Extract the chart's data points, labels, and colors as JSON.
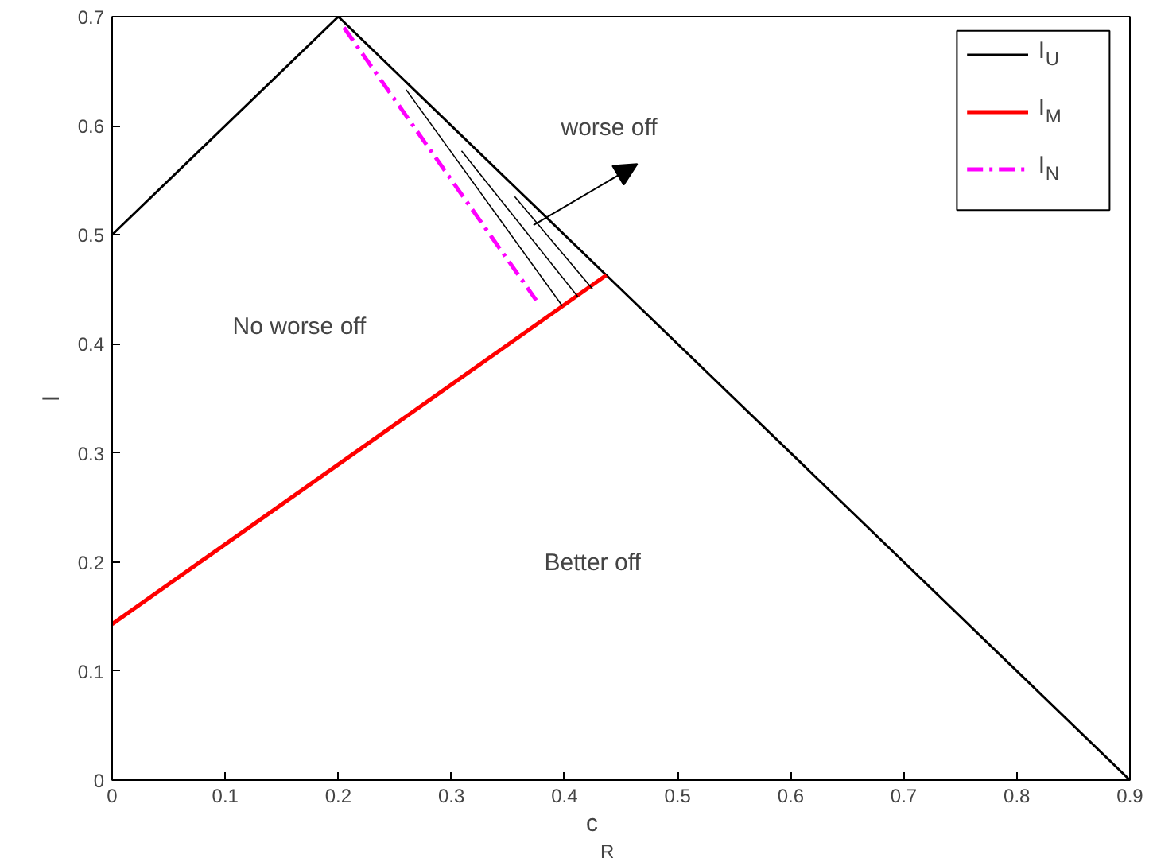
{
  "chart_data": {
    "type": "line",
    "xlabel": "c$_{R}$",
    "ylabel": "I",
    "xlim": [
      0,
      0.9
    ],
    "ylim": [
      0,
      0.7
    ],
    "xticks": [
      0,
      0.1,
      0.2,
      0.3,
      0.4,
      0.5,
      0.6,
      0.7,
      0.8,
      0.9
    ],
    "yticks": [
      0,
      0.1,
      0.2,
      0.3,
      0.4,
      0.5,
      0.6,
      0.7
    ],
    "grid": false,
    "legend": "top right",
    "series": [
      {
        "name": "I$_{U}$",
        "color": "#000000",
        "x": [
          0,
          0.2,
          0.9
        ],
        "values": [
          0.5,
          0.7,
          0
        ],
        "line_style": "solid"
      },
      {
        "name": "I$_{M}$",
        "color": "#ff0000",
        "x": [
          0,
          0.437
        ],
        "values": [
          0.143,
          0.463
        ],
        "line_style": "solid"
      },
      {
        "name": "I$_{N}$",
        "color": "#ff00ff",
        "x": [
          0.205,
          0.375
        ],
        "values": [
          0.69,
          0.44
        ],
        "line_style": "dashdot"
      },
      {
        "color": "#000000",
        "x": [
          0.26,
          0.398
        ],
        "values": [
          0.633,
          0.435
        ],
        "line_style": "solid"
      },
      {
        "color": "#000000",
        "x": [
          0.309,
          0.412
        ],
        "values": [
          0.577,
          0.443
        ],
        "line_style": "solid"
      },
      {
        "color": "#000000",
        "x": [
          0.356,
          0.425
        ],
        "values": [
          0.535,
          0.45
        ],
        "line_style": "solid"
      }
    ],
    "annotations": [
      "worse off",
      "No worse off",
      "Better off"
    ]
  }
}
